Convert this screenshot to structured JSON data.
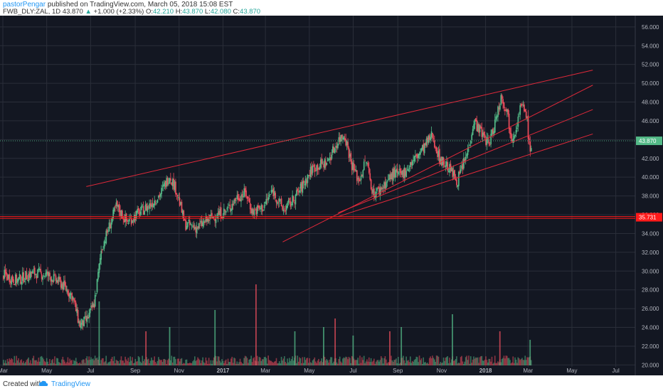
{
  "header": {
    "author": "pastorPengar",
    "published_text": "published on TradingView.com, March 05, 2018 15:08 EST",
    "symbol": "FWB_DLY:ZAL, 1D",
    "last": "43.870",
    "change_arrow": "▲",
    "change": "+1.000 (+2.33%)",
    "open_label": "O:",
    "open": "42.210",
    "high_label": "H:",
    "high": "43.870",
    "low_label": "L:",
    "low": "42.080",
    "close_label": "C:",
    "close": "43.870"
  },
  "footer": {
    "created_with": "Created with",
    "brand": "TradingView"
  },
  "colors": {
    "background": "#131722",
    "grid": "#2a2e39",
    "up": "#53b987",
    "down": "#eb4d5c",
    "trendline": "#e0293a",
    "support": "#ff1a1a",
    "axis_text": "#b2b5be"
  },
  "chart_data": {
    "type": "candlestick",
    "y_ticks": [
      "56.000",
      "54.000",
      "52.000",
      "50.000",
      "48.000",
      "46.000",
      "44.000",
      "42.000",
      "40.000",
      "38.000",
      "36.000",
      "34.000",
      "32.000",
      "30.000",
      "28.000",
      "26.000",
      "24.000",
      "22.000",
      "20.000"
    ],
    "ylim": [
      19.8,
      57.2
    ],
    "x_ticks": [
      "Mar",
      "May",
      "Jul",
      "Sep",
      "Nov",
      "2017",
      "Mar",
      "May",
      "Jul",
      "Sep",
      "Nov",
      "2018",
      "Mar",
      "May",
      "Jul"
    ],
    "x_tick_dates": [
      "2016-03-01",
      "2016-05-01",
      "2016-07-01",
      "2016-09-01",
      "2016-11-01",
      "2017-01-01",
      "2017-03-01",
      "2017-05-01",
      "2017-07-01",
      "2017-09-01",
      "2017-11-01",
      "2018-01-01",
      "2018-03-01",
      "2018-05-01",
      "2018-07-01"
    ],
    "x_start": "2016-03-01",
    "x_end": "2018-08-01",
    "last_price_label": "43.870",
    "last_price": 43.87,
    "support_label": "35.731",
    "support_price": 35.731,
    "price_path": [
      [
        "2016-03-01",
        29.6
      ],
      [
        "2016-03-20",
        29.0
      ],
      [
        "2016-04-10",
        29.8
      ],
      [
        "2016-05-01",
        29.6
      ],
      [
        "2016-05-20",
        28.7
      ],
      [
        "2016-06-05",
        27.3
      ],
      [
        "2016-06-15",
        24.2
      ],
      [
        "2016-06-25",
        24.8
      ],
      [
        "2016-07-05",
        26.5
      ],
      [
        "2016-07-10",
        29.2
      ],
      [
        "2016-07-15",
        32.3
      ],
      [
        "2016-07-25",
        34.5
      ],
      [
        "2016-08-05",
        36.9
      ],
      [
        "2016-08-20",
        35.2
      ],
      [
        "2016-09-05",
        36.2
      ],
      [
        "2016-09-20",
        37.0
      ],
      [
        "2016-10-05",
        38.2
      ],
      [
        "2016-10-18",
        40.2
      ],
      [
        "2016-10-28",
        38.5
      ],
      [
        "2016-11-08",
        35.0
      ],
      [
        "2016-11-25",
        34.6
      ],
      [
        "2016-12-15",
        35.7
      ],
      [
        "2017-01-05",
        36.4
      ],
      [
        "2017-01-20",
        37.9
      ],
      [
        "2017-02-01",
        38.3
      ],
      [
        "2017-02-10",
        36.3
      ],
      [
        "2017-02-25",
        36.8
      ],
      [
        "2017-03-10",
        38.6
      ],
      [
        "2017-03-25",
        36.5
      ],
      [
        "2017-04-05",
        37.3
      ],
      [
        "2017-04-20",
        39.0
      ],
      [
        "2017-05-05",
        41.0
      ],
      [
        "2017-05-25",
        41.6
      ],
      [
        "2017-06-10",
        44.0
      ],
      [
        "2017-06-18",
        44.6
      ],
      [
        "2017-06-28",
        41.4
      ],
      [
        "2017-07-08",
        39.6
      ],
      [
        "2017-07-18",
        41.8
      ],
      [
        "2017-07-28",
        38.2
      ],
      [
        "2017-08-08",
        38.8
      ],
      [
        "2017-08-25",
        40.4
      ],
      [
        "2017-09-05",
        40.2
      ],
      [
        "2017-09-20",
        41.6
      ],
      [
        "2017-10-05",
        43.0
      ],
      [
        "2017-10-18",
        44.5
      ],
      [
        "2017-10-28",
        42.0
      ],
      [
        "2017-11-10",
        41.0
      ],
      [
        "2017-11-22",
        39.6
      ],
      [
        "2017-12-05",
        42.4
      ],
      [
        "2017-12-15",
        46.0
      ],
      [
        "2017-12-28",
        44.4
      ],
      [
        "2018-01-05",
        43.5
      ],
      [
        "2018-01-12",
        45.5
      ],
      [
        "2018-01-22",
        48.7
      ],
      [
        "2018-01-30",
        47.0
      ],
      [
        "2018-02-05",
        44.2
      ],
      [
        "2018-02-12",
        45.4
      ],
      [
        "2018-02-18",
        47.6
      ],
      [
        "2018-02-26",
        46.8
      ],
      [
        "2018-03-03",
        42.3
      ],
      [
        "2018-03-05",
        43.87
      ]
    ],
    "volume_spikes": [
      [
        "2016-07-12",
        15
      ],
      [
        "2016-10-18",
        9
      ],
      [
        "2016-09-15",
        8
      ],
      [
        "2016-12-20",
        13
      ],
      [
        "2017-02-15",
        19
      ],
      [
        "2017-04-10",
        8
      ],
      [
        "2017-05-20",
        9
      ],
      [
        "2017-06-05",
        11
      ],
      [
        "2017-06-30",
        7
      ],
      [
        "2017-08-20",
        8
      ],
      [
        "2017-09-05",
        9
      ],
      [
        "2017-11-15",
        12
      ],
      [
        "2018-01-20",
        8
      ],
      [
        "2018-03-03",
        6
      ]
    ],
    "channels": [
      {
        "start": [
          "2016-06-25",
          39.0
        ],
        "end": [
          "2018-05-30",
          51.4
        ]
      },
      {
        "start": [
          "2017-03-25",
          33.1
        ],
        "end": [
          "2018-05-30",
          49.8
        ]
      },
      {
        "start": [
          "2017-06-10",
          36.2
        ],
        "end": [
          "2018-05-30",
          47.2
        ]
      },
      {
        "start": [
          "2017-06-10",
          35.8
        ],
        "end": [
          "2018-05-30",
          44.6
        ]
      }
    ]
  }
}
